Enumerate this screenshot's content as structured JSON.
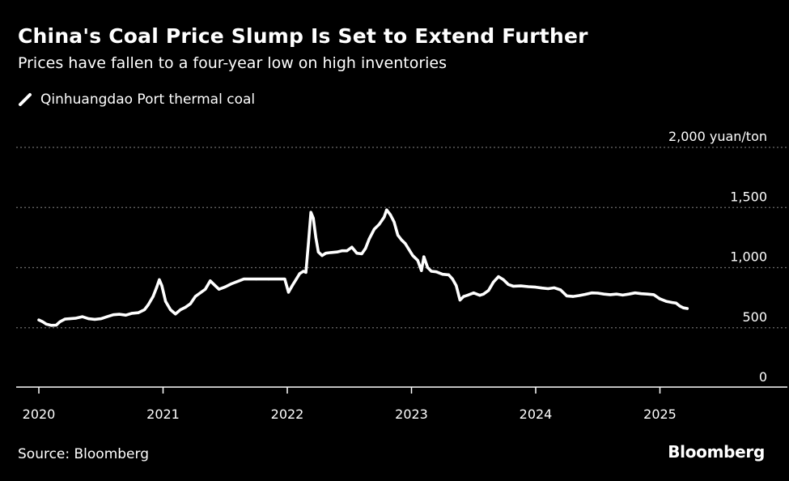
{
  "header": {
    "title": "China's Coal Price Slump Is Set to Extend Further",
    "subtitle": "Prices have fallen to a four-year low on high inventories"
  },
  "footer": {
    "source": "Source: Bloomberg",
    "brand": "Bloomberg"
  },
  "colors": {
    "background": "#000000",
    "line": "#ffffff",
    "grid": "#6b6b6b",
    "text": "#ffffff"
  },
  "chart_data": {
    "type": "line",
    "title": "China's Coal Price Slump Is Set to Extend Further",
    "subtitle": "Prices have fallen to a four-year low on high inventories",
    "xlabel": "",
    "ylabel": "yuan/ton",
    "unit": "yuan/ton",
    "xlim": [
      2020,
      2025.8
    ],
    "ylim": [
      0,
      2000
    ],
    "grid": true,
    "legend_position": "top-left",
    "x_ticks": [
      2020,
      2021,
      2022,
      2023,
      2024,
      2025
    ],
    "x_tick_labels": [
      "2020",
      "2021",
      "2022",
      "2023",
      "2024",
      "2025"
    ],
    "y_ticks": [
      0,
      500,
      1000,
      1500,
      2000
    ],
    "y_tick_labels": [
      "0",
      "500",
      "1,000",
      "1,500",
      "2,000 yuan/ton"
    ],
    "series": [
      {
        "name": "Qinhuangdao Port thermal coal",
        "color": "#ffffff",
        "points": [
          [
            2020.0,
            565
          ],
          [
            2020.03,
            550
          ],
          [
            2020.06,
            530
          ],
          [
            2020.1,
            520
          ],
          [
            2020.14,
            522
          ],
          [
            2020.17,
            550
          ],
          [
            2020.21,
            572
          ],
          [
            2020.25,
            575
          ],
          [
            2020.3,
            580
          ],
          [
            2020.35,
            592
          ],
          [
            2020.4,
            575
          ],
          [
            2020.45,
            570
          ],
          [
            2020.5,
            575
          ],
          [
            2020.55,
            592
          ],
          [
            2020.6,
            608
          ],
          [
            2020.65,
            612
          ],
          [
            2020.7,
            605
          ],
          [
            2020.75,
            620
          ],
          [
            2020.8,
            625
          ],
          [
            2020.85,
            650
          ],
          [
            2020.88,
            690
          ],
          [
            2020.92,
            760
          ],
          [
            2020.95,
            840
          ],
          [
            2020.97,
            900
          ],
          [
            2020.99,
            850
          ],
          [
            2021.02,
            720
          ],
          [
            2021.06,
            650
          ],
          [
            2021.1,
            615
          ],
          [
            2021.14,
            650
          ],
          [
            2021.18,
            670
          ],
          [
            2021.22,
            700
          ],
          [
            2021.26,
            760
          ],
          [
            2021.3,
            790
          ],
          [
            2021.34,
            820
          ],
          [
            2021.38,
            890
          ],
          [
            2021.41,
            860
          ],
          [
            2021.45,
            820
          ],
          [
            2021.5,
            840
          ],
          [
            2021.55,
            865
          ],
          [
            2021.6,
            885
          ],
          [
            2021.65,
            905
          ],
          [
            2021.75,
            905
          ],
          [
            2021.85,
            905
          ],
          [
            2021.95,
            905
          ],
          [
            2021.98,
            905
          ],
          [
            2022.01,
            795
          ],
          [
            2022.04,
            850
          ],
          [
            2022.07,
            900
          ],
          [
            2022.1,
            950
          ],
          [
            2022.13,
            970
          ],
          [
            2022.15,
            960
          ],
          [
            2022.17,
            1200
          ],
          [
            2022.19,
            1460
          ],
          [
            2022.21,
            1410
          ],
          [
            2022.23,
            1250
          ],
          [
            2022.25,
            1130
          ],
          [
            2022.28,
            1100
          ],
          [
            2022.31,
            1120
          ],
          [
            2022.35,
            1125
          ],
          [
            2022.4,
            1130
          ],
          [
            2022.44,
            1140
          ],
          [
            2022.48,
            1140
          ],
          [
            2022.52,
            1170
          ],
          [
            2022.56,
            1120
          ],
          [
            2022.6,
            1115
          ],
          [
            2022.63,
            1160
          ],
          [
            2022.66,
            1240
          ],
          [
            2022.7,
            1320
          ],
          [
            2022.74,
            1360
          ],
          [
            2022.78,
            1420
          ],
          [
            2022.8,
            1480
          ],
          [
            2022.83,
            1440
          ],
          [
            2022.86,
            1380
          ],
          [
            2022.89,
            1270
          ],
          [
            2022.92,
            1230
          ],
          [
            2022.95,
            1200
          ],
          [
            2022.98,
            1150
          ],
          [
            2023.01,
            1100
          ],
          [
            2023.05,
            1060
          ],
          [
            2023.08,
            975
          ],
          [
            2023.1,
            1090
          ],
          [
            2023.13,
            1000
          ],
          [
            2023.16,
            970
          ],
          [
            2023.2,
            965
          ],
          [
            2023.25,
            945
          ],
          [
            2023.3,
            940
          ],
          [
            2023.33,
            905
          ],
          [
            2023.36,
            850
          ],
          [
            2023.39,
            730
          ],
          [
            2023.42,
            760
          ],
          [
            2023.45,
            770
          ],
          [
            2023.5,
            790
          ],
          [
            2023.55,
            770
          ],
          [
            2023.58,
            780
          ],
          [
            2023.62,
            810
          ],
          [
            2023.66,
            880
          ],
          [
            2023.7,
            925
          ],
          [
            2023.74,
            900
          ],
          [
            2023.78,
            860
          ],
          [
            2023.82,
            845
          ],
          [
            2023.88,
            848
          ],
          [
            2023.94,
            842
          ],
          [
            2024.0,
            838
          ],
          [
            2024.05,
            830
          ],
          [
            2024.1,
            825
          ],
          [
            2024.15,
            832
          ],
          [
            2024.2,
            815
          ],
          [
            2024.25,
            765
          ],
          [
            2024.3,
            760
          ],
          [
            2024.35,
            768
          ],
          [
            2024.4,
            778
          ],
          [
            2024.45,
            790
          ],
          [
            2024.5,
            788
          ],
          [
            2024.55,
            780
          ],
          [
            2024.6,
            775
          ],
          [
            2024.65,
            780
          ],
          [
            2024.7,
            772
          ],
          [
            2024.75,
            780
          ],
          [
            2024.8,
            790
          ],
          [
            2024.85,
            783
          ],
          [
            2024.9,
            780
          ],
          [
            2024.95,
            775
          ],
          [
            2025.0,
            740
          ],
          [
            2025.05,
            720
          ],
          [
            2025.1,
            710
          ],
          [
            2025.13,
            705
          ],
          [
            2025.16,
            680
          ],
          [
            2025.19,
            665
          ],
          [
            2025.22,
            660
          ]
        ]
      }
    ]
  }
}
